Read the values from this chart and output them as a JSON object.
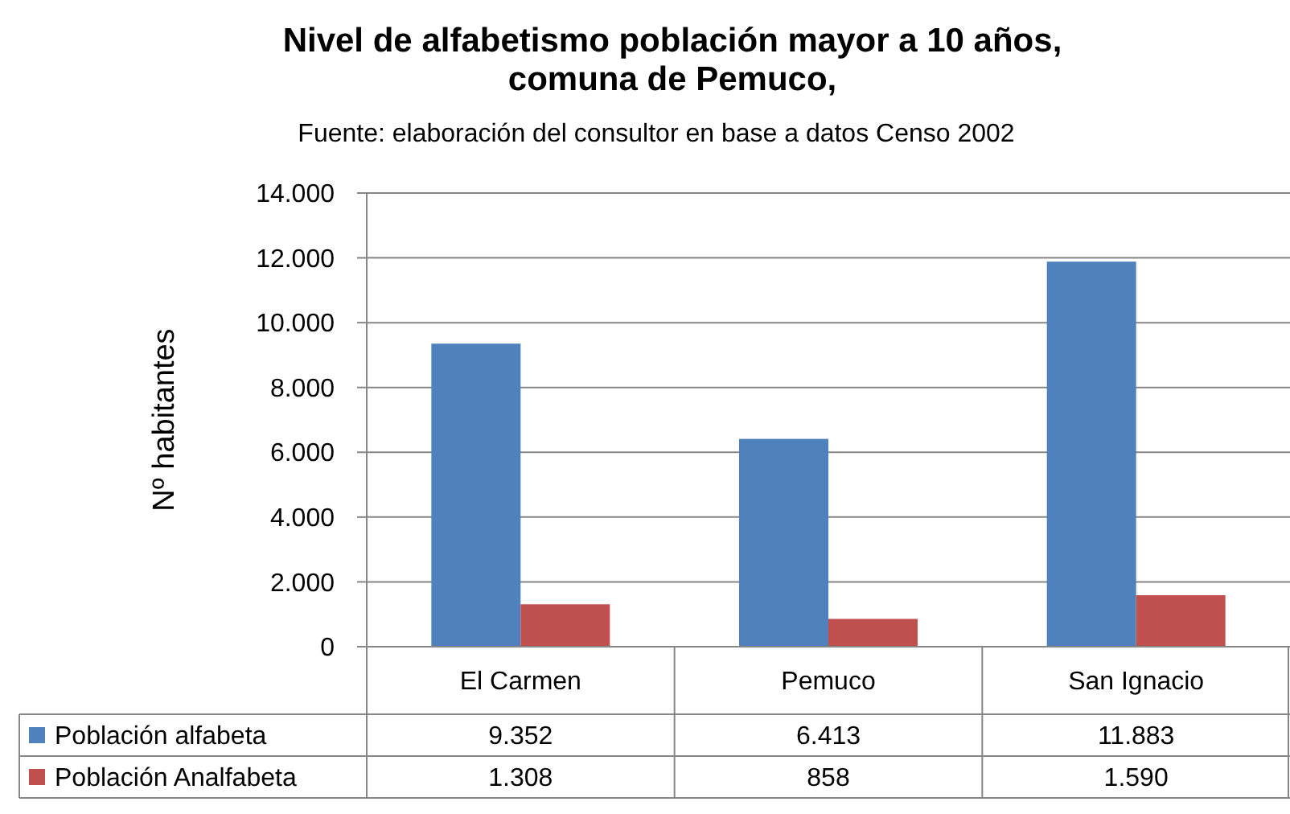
{
  "chart_data": {
    "type": "bar",
    "title": "Nivel de alfabetismo población mayor a 10 años,\ncomuna de Pemuco,",
    "subtitle": "Fuente: elaboración del consultor en base a datos Censo 2002",
    "ylabel": "Nº habitantes",
    "categories": [
      "El Carmen",
      "Pemuco",
      "San Ignacio"
    ],
    "series": [
      {
        "name": "Población alfabeta",
        "color": "#4f81bd",
        "values": [
          9352,
          6413,
          11883
        ],
        "value_labels": [
          "9.352",
          "6.413",
          "11.883"
        ]
      },
      {
        "name": "Población Analfabeta",
        "color": "#c0504d",
        "values": [
          1308,
          858,
          1590
        ],
        "value_labels": [
          "1.308",
          "858",
          "1.590"
        ]
      }
    ],
    "ylim": [
      0,
      14000
    ],
    "yticks": [
      0,
      {
        "value": 2000,
        "label": "2.000"
      },
      {
        "value": 4000,
        "label": "4.000"
      },
      {
        "value": 6000,
        "label": "6.000"
      },
      {
        "value": 8000,
        "label": "8.000"
      },
      {
        "value": 10000,
        "label": "10.000"
      },
      {
        "value": 12000,
        "label": "12.000"
      },
      {
        "value": 14000,
        "label": "14.000"
      }
    ],
    "grid": "y",
    "legend": "bottom"
  }
}
